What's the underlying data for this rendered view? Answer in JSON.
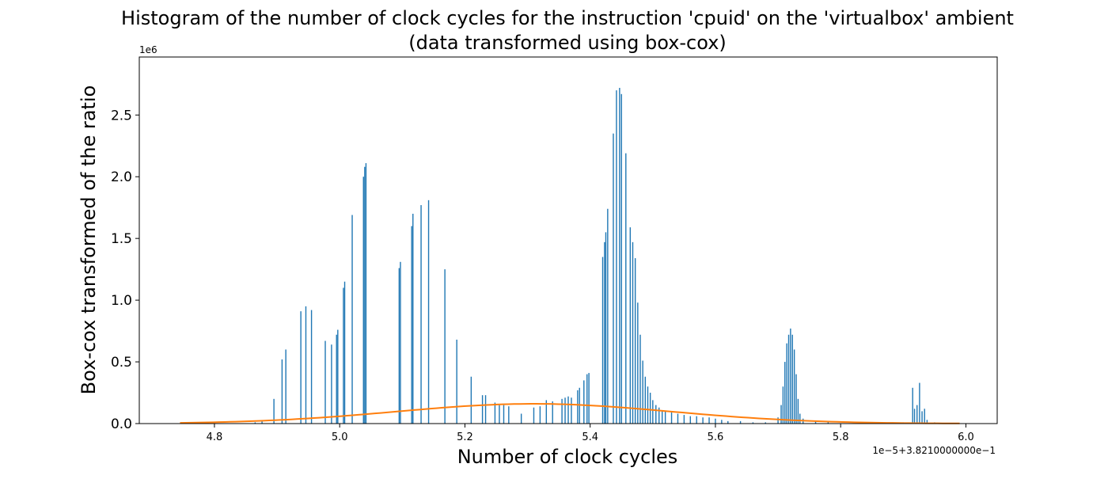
{
  "chart_data": {
    "type": "bar",
    "title_line1": "Histogram of the number of clock cycles for the instruction 'cpuid' on the 'virtualbox' ambient",
    "title_line2": "(data transformed using box-cox)",
    "xlabel": "Number of clock cycles",
    "ylabel": "Box-cox transformed of the ratio",
    "y_multiplier_label": "1e6",
    "x_offset_label": "1e−5+3.8210000000e−1",
    "xlim": [
      4.68,
      6.05
    ],
    "ylim": [
      0,
      2.97
    ],
    "x_ticks": [
      4.8,
      5.0,
      5.2,
      5.4,
      5.6,
      5.8,
      6.0
    ],
    "x_tick_labels": [
      "4.8",
      "5.0",
      "5.2",
      "5.4",
      "5.6",
      "5.8",
      "6.0"
    ],
    "y_ticks": [
      0,
      0.5,
      1.0,
      1.5,
      2.0,
      2.5
    ],
    "y_tick_labels": [
      "0.0",
      "0.5",
      "1.0",
      "1.5",
      "2.0",
      "2.5"
    ],
    "grid": false,
    "bar_color": "#1f77b4",
    "curve_color": "#ff7f0e",
    "bars": [
      [
        4.865,
        0.01
      ],
      [
        4.876,
        0.02
      ],
      [
        4.895,
        0.2
      ],
      [
        4.908,
        0.52
      ],
      [
        4.914,
        0.6
      ],
      [
        4.938,
        0.91
      ],
      [
        4.946,
        0.95
      ],
      [
        4.955,
        0.92
      ],
      [
        4.977,
        0.67
      ],
      [
        4.987,
        0.64
      ],
      [
        4.995,
        0.72
      ],
      [
        4.997,
        0.76
      ],
      [
        5.006,
        1.1
      ],
      [
        5.008,
        1.15
      ],
      [
        5.02,
        1.69
      ],
      [
        5.038,
        2.0
      ],
      [
        5.04,
        2.08
      ],
      [
        5.042,
        2.11
      ],
      [
        5.095,
        1.26
      ],
      [
        5.097,
        1.31
      ],
      [
        5.115,
        1.6
      ],
      [
        5.117,
        1.7
      ],
      [
        5.13,
        1.77
      ],
      [
        5.142,
        1.81
      ],
      [
        5.168,
        1.25
      ],
      [
        5.187,
        0.68
      ],
      [
        5.21,
        0.38
      ],
      [
        5.228,
        0.23
      ],
      [
        5.233,
        0.23
      ],
      [
        5.248,
        0.17
      ],
      [
        5.255,
        0.15
      ],
      [
        5.262,
        0.15
      ],
      [
        5.27,
        0.14
      ],
      [
        5.29,
        0.08
      ],
      [
        5.31,
        0.13
      ],
      [
        5.32,
        0.14
      ],
      [
        5.33,
        0.19
      ],
      [
        5.34,
        0.18
      ],
      [
        5.355,
        0.2
      ],
      [
        5.36,
        0.21
      ],
      [
        5.365,
        0.22
      ],
      [
        5.37,
        0.21
      ],
      [
        5.38,
        0.27
      ],
      [
        5.383,
        0.29
      ],
      [
        5.39,
        0.35
      ],
      [
        5.395,
        0.4
      ],
      [
        5.398,
        0.41
      ],
      [
        5.42,
        1.35
      ],
      [
        5.423,
        1.47
      ],
      [
        5.425,
        1.55
      ],
      [
        5.428,
        1.74
      ],
      [
        5.437,
        2.35
      ],
      [
        5.442,
        2.7
      ],
      [
        5.447,
        2.72
      ],
      [
        5.45,
        2.67
      ],
      [
        5.457,
        2.19
      ],
      [
        5.464,
        1.59
      ],
      [
        5.468,
        1.47
      ],
      [
        5.472,
        1.34
      ],
      [
        5.476,
        0.98
      ],
      [
        5.48,
        0.72
      ],
      [
        5.484,
        0.51
      ],
      [
        5.488,
        0.38
      ],
      [
        5.492,
        0.3
      ],
      [
        5.496,
        0.25
      ],
      [
        5.5,
        0.19
      ],
      [
        5.505,
        0.15
      ],
      [
        5.51,
        0.13
      ],
      [
        5.515,
        0.1
      ],
      [
        5.52,
        0.1
      ],
      [
        5.53,
        0.09
      ],
      [
        5.54,
        0.08
      ],
      [
        5.55,
        0.07
      ],
      [
        5.56,
        0.06
      ],
      [
        5.57,
        0.06
      ],
      [
        5.58,
        0.05
      ],
      [
        5.59,
        0.05
      ],
      [
        5.6,
        0.04
      ],
      [
        5.61,
        0.03
      ],
      [
        5.62,
        0.02
      ],
      [
        5.64,
        0.02
      ],
      [
        5.66,
        0.01
      ],
      [
        5.68,
        0.01
      ],
      [
        5.7,
        0.05
      ],
      [
        5.705,
        0.15
      ],
      [
        5.708,
        0.3
      ],
      [
        5.711,
        0.5
      ],
      [
        5.714,
        0.65
      ],
      [
        5.717,
        0.72
      ],
      [
        5.72,
        0.77
      ],
      [
        5.723,
        0.72
      ],
      [
        5.726,
        0.6
      ],
      [
        5.729,
        0.4
      ],
      [
        5.732,
        0.2
      ],
      [
        5.735,
        0.08
      ],
      [
        5.74,
        0.04
      ],
      [
        5.76,
        0.02
      ],
      [
        5.78,
        0.01
      ],
      [
        5.9,
        0.01
      ],
      [
        5.915,
        0.29
      ],
      [
        5.918,
        0.12
      ],
      [
        5.922,
        0.15
      ],
      [
        5.926,
        0.33
      ],
      [
        5.93,
        0.1
      ],
      [
        5.934,
        0.12
      ],
      [
        5.938,
        0.03
      ],
      [
        5.95,
        0.01
      ]
    ],
    "curve": {
      "x_min": 4.745,
      "x_max": 5.99,
      "mean": 5.31,
      "sd": 0.22,
      "peak": 0.16
    }
  }
}
